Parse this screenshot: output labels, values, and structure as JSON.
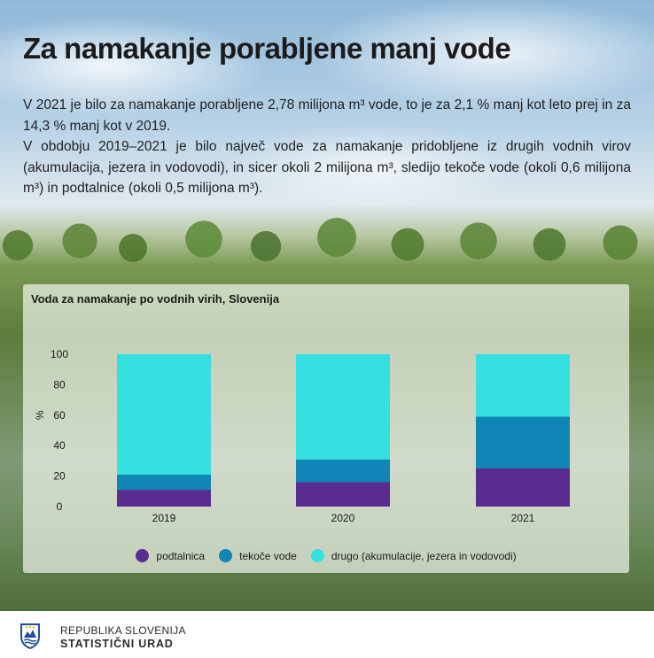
{
  "header": {
    "title": "Za namakanje porabljene manj vode",
    "intro_1": "V 2021 je bilo za namakanje porabljene 2,78 milijona m³ vode, to je za 2,1 % manj kot leto prej in za 14,3 % manj kot v 2019.",
    "intro_2": "V obdobju 2019–2021 je bilo največ vode za namakanje pridobljene iz drugih vodnih virov (akumulacija, jezera in vodovodi), in sicer okoli 2 milijona m³, sledijo tekoče vode (okoli 0,6 milijona m³) in podtalnice (okoli 0,5 milijona m³)."
  },
  "chart_data": {
    "type": "bar",
    "stacked": true,
    "title": "Voda za namakanje po vodnih virih, Slovenija",
    "xlabel": "",
    "ylabel": "%",
    "ylim": [
      0,
      100
    ],
    "yticks": [
      0,
      20,
      40,
      60,
      80,
      100
    ],
    "categories": [
      "2019",
      "2020",
      "2021"
    ],
    "series": [
      {
        "name": "podtalnica",
        "color": "#5b2c8f",
        "values": [
          11,
          16,
          25
        ]
      },
      {
        "name": "tekoče vode",
        "color": "#0f86b5",
        "values": [
          10,
          15,
          34
        ]
      },
      {
        "name": "drugo (akumulacije, jezera in vodovodi)",
        "color": "#36e0e0",
        "values": [
          79,
          69,
          41
        ]
      }
    ],
    "legend_position": "bottom",
    "grid": false
  },
  "footer": {
    "org_line1": "REPUBLIKA SLOVENIJA",
    "org_line2": "STATISTIČNI URAD"
  }
}
